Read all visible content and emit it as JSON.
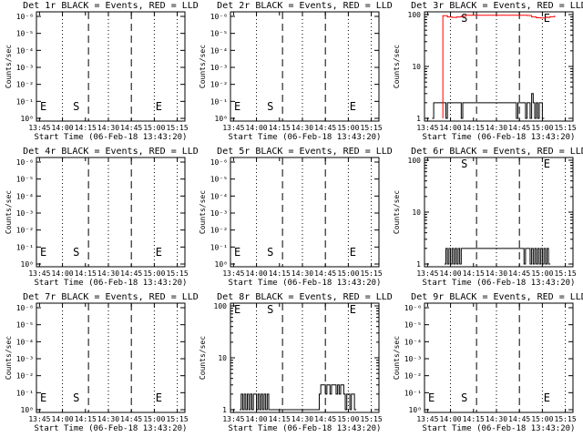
{
  "figure": {
    "shared": {
      "ylabel": "Counts/sec",
      "xlabel": "Start Time (06-Feb-18 13:43:20)",
      "xtick_labels": [
        "13:45",
        "14:00",
        "14:15",
        "14:30",
        "14:45",
        "15:00",
        "15:15"
      ],
      "marker_start": "S",
      "marker_end": "E"
    }
  },
  "chart_data": [
    {
      "title": "Det 1r BLACK = Events, RED = LLD",
      "type": "line",
      "yscale": "log",
      "ytick_labels": [
        "10⁰",
        "10⁻¹",
        "10⁻²",
        "10⁻³",
        "10⁻⁴",
        "10⁻⁵",
        "10⁻⁶"
      ],
      "series": [
        {
          "color": "#000000",
          "x": [],
          "y": []
        },
        {
          "color": "#ff0000",
          "x": [],
          "y": []
        }
      ],
      "markers": {
        "S": "14:15",
        "E": "14:57",
        "left_E": "13:45"
      }
    },
    {
      "title": "Det 2r BLACK = Events, RED = LLD",
      "type": "line",
      "yscale": "log",
      "ytick_labels": [
        "10⁰",
        "10⁻¹",
        "10⁻²",
        "10⁻³",
        "10⁻⁴",
        "10⁻⁵",
        "10⁻⁶"
      ],
      "series": [
        {
          "color": "#000000",
          "x": [],
          "y": []
        },
        {
          "color": "#ff0000",
          "x": [],
          "y": []
        }
      ],
      "markers": {
        "S": "14:15",
        "E": "14:57",
        "left_E": "13:45"
      }
    },
    {
      "title": "Det 3r BLACK = Events, RED = LLD",
      "type": "line",
      "yscale": "log",
      "ytick_labels": [
        "100",
        "10",
        "1"
      ],
      "series": [
        {
          "color": "#000000",
          "x": [
            "13:48",
            "13:49",
            "13:57",
            "13:58",
            "14:07",
            "14:08",
            "14:43",
            "14:44",
            "14:49",
            "14:50",
            "14:51",
            "14:52",
            "14:53",
            "14:54",
            "14:55",
            "14:56",
            "14:57",
            "14:58",
            "14:59",
            "15:00"
          ],
          "y": [
            1,
            2,
            1,
            2,
            1,
            2,
            1,
            2,
            1,
            2,
            2,
            1,
            3,
            2,
            1,
            2,
            1,
            2,
            2,
            1
          ]
        },
        {
          "color": "#ff0000",
          "x": [
            "13:55",
            "13:58",
            "14:01",
            "14:04",
            "14:07",
            "14:10",
            "14:50",
            "14:53",
            "14:56",
            "14:59",
            "15:02",
            "15:05",
            "15:08"
          ],
          "y": [
            95,
            90,
            88,
            90,
            93,
            97,
            96,
            90,
            87,
            86,
            88,
            91,
            96
          ]
        }
      ],
      "markers": {
        "S": "14:15",
        "E": "14:57",
        "left_E": null
      }
    },
    {
      "title": "Det 4r BLACK = Events, RED = LLD",
      "type": "line",
      "yscale": "log",
      "ytick_labels": [
        "10⁰",
        "10⁻¹",
        "10⁻²",
        "10⁻³",
        "10⁻⁴",
        "10⁻⁵",
        "10⁻⁶"
      ],
      "series": [
        {
          "color": "#000000",
          "x": [],
          "y": []
        },
        {
          "color": "#ff0000",
          "x": [],
          "y": []
        }
      ],
      "markers": {
        "S": "14:15",
        "E": "14:57",
        "left_E": "13:45"
      }
    },
    {
      "title": "Det 5r BLACK = Events, RED = LLD",
      "type": "line",
      "yscale": "log",
      "ytick_labels": [
        "10⁰",
        "10⁻¹",
        "10⁻²",
        "10⁻³",
        "10⁻⁴",
        "10⁻⁵",
        "10⁻⁶"
      ],
      "series": [
        {
          "color": "#000000",
          "x": [],
          "y": []
        },
        {
          "color": "#ff0000",
          "x": [],
          "y": []
        }
      ],
      "markers": {
        "S": "14:15",
        "E": "14:57",
        "left_E": "13:45"
      }
    },
    {
      "title": "Det 6r BLACK = Events, RED = LLD",
      "type": "line",
      "yscale": "log",
      "ytick_labels": [
        "100",
        "10",
        "1"
      ],
      "series": [
        {
          "color": "#000000",
          "x": [
            "13:56",
            "13:57",
            "13:58",
            "13:59",
            "14:00",
            "14:01",
            "14:02",
            "14:03",
            "14:04",
            "14:05",
            "14:06",
            "14:07",
            "14:48",
            "14:49",
            "14:50",
            "14:51",
            "14:52",
            "14:53",
            "14:54",
            "14:55",
            "14:56",
            "14:57",
            "14:58",
            "14:59",
            "15:00",
            "15:01",
            "15:02",
            "15:03",
            "15:04"
          ],
          "y": [
            1,
            2,
            1,
            2,
            1,
            2,
            1,
            2,
            1,
            2,
            1,
            2,
            1,
            2,
            2,
            2,
            1,
            2,
            1,
            2,
            1,
            2,
            1,
            2,
            1,
            2,
            1,
            2,
            1
          ]
        },
        {
          "color": "#ff0000",
          "x": [],
          "y": []
        }
      ],
      "markers": {
        "S": "14:15",
        "E": "14:57",
        "left_E": null
      }
    },
    {
      "title": "Det 7r BLACK = Events, RED = LLD",
      "type": "line",
      "yscale": "log",
      "ytick_labels": [
        "10⁰",
        "10⁻¹",
        "10⁻²",
        "10⁻³",
        "10⁻⁴",
        "10⁻⁵",
        "10⁻⁶"
      ],
      "series": [
        {
          "color": "#000000",
          "x": [],
          "y": []
        },
        {
          "color": "#ff0000",
          "x": [],
          "y": []
        }
      ],
      "markers": {
        "S": "14:15",
        "E": "14:57",
        "left_E": "13:45"
      }
    },
    {
      "title": "Det 8r BLACK = Events, RED = LLD",
      "type": "line",
      "yscale": "log",
      "ytick_labels": [
        "100",
        "10",
        "1"
      ],
      "series": [
        {
          "color": "#000000",
          "x": [
            "13:49",
            "13:50",
            "13:51",
            "13:52",
            "13:53",
            "13:54",
            "13:55",
            "13:56",
            "13:57",
            "13:58",
            "13:59",
            "14:00",
            "14:01",
            "14:02",
            "14:03",
            "14:04",
            "14:05",
            "14:06",
            "14:07",
            "14:08",
            "14:41",
            "14:42",
            "14:43",
            "14:44",
            "14:45",
            "14:46",
            "14:47",
            "14:48",
            "14:49",
            "14:50",
            "14:51",
            "14:52",
            "14:53",
            "14:54",
            "14:55",
            "14:56",
            "14:57",
            "14:58",
            "14:59",
            "15:00",
            "15:01",
            "15:02",
            "15:03",
            "15:04"
          ],
          "y": [
            1,
            2,
            1,
            2,
            1,
            2,
            1,
            2,
            1,
            2,
            2,
            1,
            2,
            1,
            2,
            1,
            2,
            1,
            2,
            1,
            2,
            3,
            3,
            3,
            2,
            3,
            3,
            2,
            3,
            3,
            3,
            2,
            3,
            2,
            3,
            3,
            2,
            1,
            2,
            2,
            1,
            2,
            2,
            1
          ]
        },
        {
          "color": "#ff0000",
          "x": [],
          "y": []
        }
      ],
      "markers": {
        "S": "14:15",
        "E": "14:57",
        "left_E": "13:45"
      }
    },
    {
      "title": "Det 9r BLACK = Events, RED = LLD",
      "type": "line",
      "yscale": "log",
      "ytick_labels": [
        "10⁰",
        "10⁻¹",
        "10⁻²",
        "10⁻³",
        "10⁻⁴",
        "10⁻⁵",
        "10⁻⁶"
      ],
      "series": [
        {
          "color": "#000000",
          "x": [],
          "y": []
        },
        {
          "color": "#ff0000",
          "x": [],
          "y": []
        }
      ],
      "markers": {
        "S": "14:15",
        "E": "14:57",
        "left_E": "13:45"
      }
    }
  ]
}
